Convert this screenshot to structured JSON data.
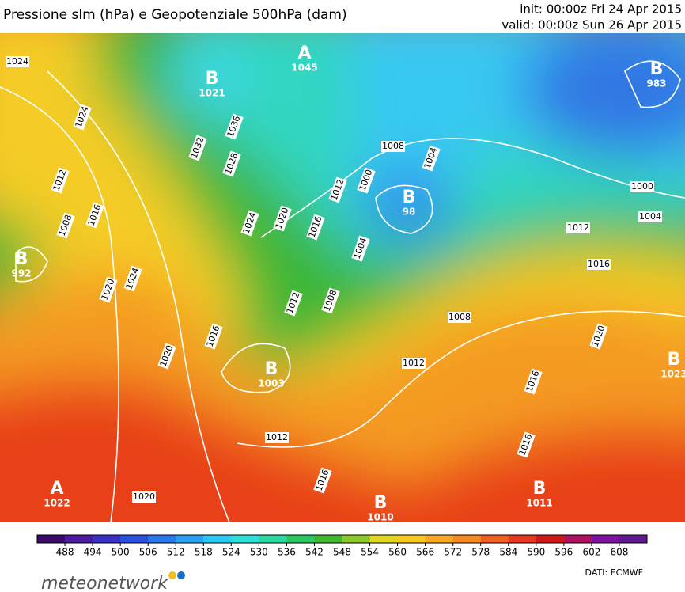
{
  "header": {
    "title": "Pressione slm (hPa) e Geopotenziale 500hPa (dam)",
    "init": "init: 00:00z Fri 24 Apr 2015",
    "valid": "valid: 00:00z Sun 26 Apr 2015"
  },
  "centers": [
    {
      "letter": "A",
      "value": "1045"
    },
    {
      "letter": "B",
      "value": "1021"
    },
    {
      "letter": "B",
      "value": "983"
    },
    {
      "letter": "B",
      "value": "98"
    },
    {
      "letter": "B",
      "value": "992"
    },
    {
      "letter": "B",
      "value": "1003"
    },
    {
      "letter": "A",
      "value": "1022"
    },
    {
      "letter": "B",
      "value": "1010"
    },
    {
      "letter": "B",
      "value": "1011"
    },
    {
      "letter": "B",
      "value": "1023"
    }
  ],
  "isobar_labels": [
    1024,
    1024,
    1032,
    1036,
    1028,
    1008,
    1012,
    1016,
    1008,
    1000,
    1012,
    1004,
    1000,
    1004,
    1012,
    1024,
    1020,
    1016,
    1004,
    1016,
    1020,
    1024,
    1012,
    1008,
    1008,
    1020,
    1016,
    1020,
    1012,
    1016,
    1012,
    1016,
    1016,
    1020
  ],
  "colorbar": {
    "ticks": [
      488,
      494,
      500,
      506,
      512,
      518,
      524,
      530,
      536,
      542,
      548,
      554,
      560,
      566,
      572,
      578,
      584,
      590,
      596,
      602,
      608
    ],
    "colors": [
      "#3a0a6a",
      "#4a1aa0",
      "#3a30c8",
      "#2a50e0",
      "#2a78ee",
      "#2aa0f4",
      "#2ac8f4",
      "#2ae0d8",
      "#2ad8a0",
      "#2ac860",
      "#40b830",
      "#8cc828",
      "#e0d820",
      "#f8c820",
      "#f8a820",
      "#f88820",
      "#f06020",
      "#e83820",
      "#d01818",
      "#b01060",
      "#8010a0",
      "#601890"
    ]
  },
  "footer": {
    "brand": "meteonetwork",
    "source": "DATI:  ECMWF"
  }
}
